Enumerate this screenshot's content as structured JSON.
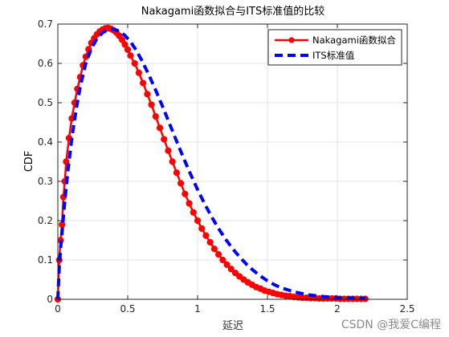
{
  "chart_data": {
    "type": "line",
    "title": "Nakagami函数拟合与ITS标准值的比较",
    "xlabel": "延迟",
    "ylabel": "CDF",
    "xlim": [
      0,
      2.5
    ],
    "ylim": [
      0,
      0.7
    ],
    "xticks": [
      "0",
      "0.5",
      "1",
      "1.5",
      "2",
      "2.5"
    ],
    "yticks": [
      "0",
      "0.1",
      "0.2",
      "0.3",
      "0.4",
      "0.5",
      "0.6",
      "0.7"
    ],
    "grid": true,
    "legend_position": "top-right",
    "series": [
      {
        "name": "Nakagami函数拟合",
        "color": "#ff0000",
        "marker": "circle",
        "x": [
          0,
          0.01,
          0.02,
          0.03,
          0.04,
          0.05,
          0.06,
          0.08,
          0.1,
          0.12,
          0.14,
          0.16,
          0.18,
          0.2,
          0.22,
          0.24,
          0.26,
          0.28,
          0.3,
          0.32,
          0.34,
          0.36,
          0.38,
          0.4,
          0.42,
          0.44,
          0.46,
          0.48,
          0.5,
          0.52,
          0.55,
          0.58,
          0.61,
          0.64,
          0.67,
          0.7,
          0.73,
          0.76,
          0.79,
          0.82,
          0.85,
          0.88,
          0.91,
          0.94,
          0.97,
          1.0,
          1.03,
          1.06,
          1.09,
          1.12,
          1.15,
          1.18,
          1.21,
          1.24,
          1.27,
          1.3,
          1.33,
          1.36,
          1.39,
          1.42,
          1.45,
          1.48,
          1.51,
          1.54,
          1.57,
          1.6,
          1.63,
          1.66,
          1.69,
          1.72,
          1.75,
          1.78,
          1.81,
          1.84,
          1.87,
          1.9,
          1.93,
          1.96,
          1.99,
          2.02,
          2.05,
          2.08,
          2.11,
          2.14,
          2.17,
          2.2
        ],
        "y": [
          0,
          0.1,
          0.15,
          0.19,
          0.26,
          0.3,
          0.35,
          0.41,
          0.46,
          0.5,
          0.535,
          0.565,
          0.595,
          0.617,
          0.636,
          0.652,
          0.664,
          0.674,
          0.681,
          0.686,
          0.689,
          0.69,
          0.688,
          0.684,
          0.678,
          0.67,
          0.66,
          0.648,
          0.635,
          0.62,
          0.6,
          0.576,
          0.55,
          0.522,
          0.495,
          0.465,
          0.436,
          0.407,
          0.378,
          0.35,
          0.322,
          0.295,
          0.268,
          0.244,
          0.221,
          0.2,
          0.18,
          0.162,
          0.145,
          0.128,
          0.114,
          0.1,
          0.088,
          0.077,
          0.067,
          0.058,
          0.05,
          0.043,
          0.037,
          0.031,
          0.027,
          0.022,
          0.019,
          0.016,
          0.013,
          0.011,
          0.009,
          0.008,
          0.006,
          0.005,
          0.004,
          0.004,
          0.003,
          0.003,
          0.002,
          0.002,
          0.002,
          0.002,
          0.002,
          0.001,
          0.001,
          0.001,
          0.001,
          0.001,
          0.001,
          0.001
        ]
      },
      {
        "name": "ITS标准值",
        "color": "#0000ff",
        "style": "dashed",
        "x": [
          0,
          0.01,
          0.02,
          0.03,
          0.05,
          0.07,
          0.1,
          0.13,
          0.16,
          0.2,
          0.24,
          0.28,
          0.32,
          0.36,
          0.4,
          0.44,
          0.48,
          0.52,
          0.56,
          0.6,
          0.65,
          0.7,
          0.75,
          0.8,
          0.85,
          0.9,
          0.95,
          1.0,
          1.05,
          1.1,
          1.15,
          1.2,
          1.25,
          1.3,
          1.35,
          1.4,
          1.45,
          1.5,
          1.55,
          1.6,
          1.7,
          1.8,
          1.9,
          2.0,
          2.1,
          2.2
        ],
        "y": [
          0,
          0.08,
          0.13,
          0.17,
          0.25,
          0.32,
          0.41,
          0.48,
          0.54,
          0.6,
          0.638,
          0.663,
          0.678,
          0.686,
          0.687,
          0.682,
          0.671,
          0.655,
          0.634,
          0.608,
          0.572,
          0.532,
          0.49,
          0.446,
          0.402,
          0.359,
          0.318,
          0.279,
          0.243,
          0.21,
          0.18,
          0.153,
          0.129,
          0.108,
          0.089,
          0.073,
          0.059,
          0.047,
          0.037,
          0.029,
          0.018,
          0.011,
          0.007,
          0.004,
          0.003,
          0.002
        ]
      }
    ]
  },
  "watermark": "CSDN @我爱C编程"
}
